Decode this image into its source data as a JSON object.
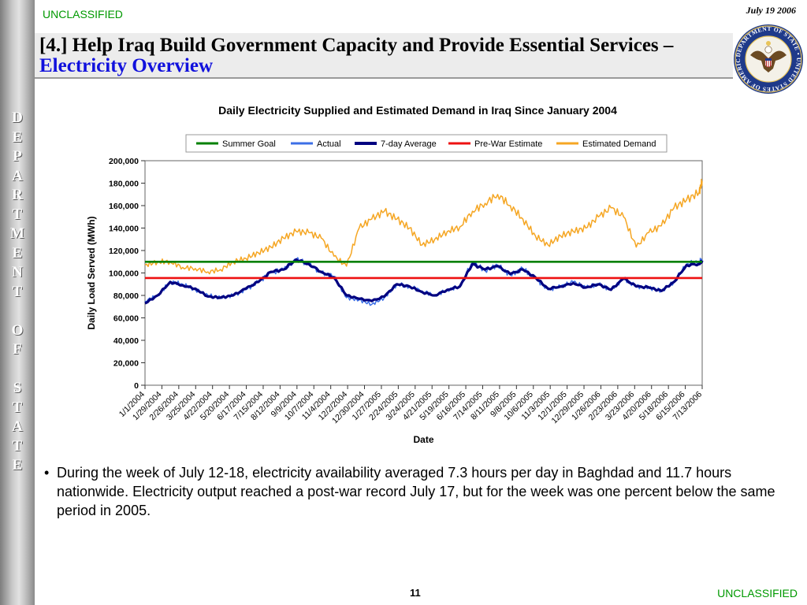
{
  "header": {
    "classification_top": "UNCLASSIFIED",
    "date": "July 19 2006",
    "title_main": "[4.] Help Iraq Build Government Capacity and Provide Essential Services – ",
    "title_accent": "Electricity Overview"
  },
  "sidebar": {
    "letters": [
      "D",
      "E",
      "P",
      "A",
      "R",
      "T",
      "M",
      "E",
      "N",
      "T",
      " ",
      "O",
      "F",
      " ",
      "S",
      "T",
      "A",
      "T",
      "E"
    ]
  },
  "seal": {
    "text": "DEPARTMENT OF STATE • UNITED STATES OF AMERICA"
  },
  "chart_data": {
    "type": "line",
    "title": "Daily Electricity Supplied and Estimated Demand in Iraq Since January 2004",
    "xlabel": "Date",
    "ylabel": "Daily Load Served (MWh)",
    "ylim": [
      0,
      200000
    ],
    "y_ticks": [
      "0",
      "20,000",
      "40,000",
      "60,000",
      "80,000",
      "100,000",
      "120,000",
      "140,000",
      "160,000",
      "180,000",
      "200,000"
    ],
    "x_tick_labels": [
      "1/1/2004",
      "1/29/2004",
      "2/26/2004",
      "3/25/2004",
      "4/22/2004",
      "5/20/2004",
      "6/17/2004",
      "7/15/2004",
      "8/12/2004",
      "9/9/2004",
      "10/7/2004",
      "11/4/2004",
      "12/2/2004",
      "12/30/2004",
      "1/27/2005",
      "2/24/2005",
      "3/24/2005",
      "4/21/2005",
      "5/19/2005",
      "6/16/2005",
      "7/14/2005",
      "8/11/2005",
      "9/8/2005",
      "10/6/2005",
      "11/3/2005",
      "12/1/2005",
      "12/29/2005",
      "1/26/2006",
      "2/23/2006",
      "3/23/2006",
      "4/20/2006",
      "5/18/2006",
      "6/15/2006",
      "7/13/2006"
    ],
    "x_range": [
      "2004-01-01",
      "2006-07-18"
    ],
    "grid": false,
    "legend_position": "top",
    "series": [
      {
        "name": "Summer Goal",
        "color": "#008000",
        "style": "flat",
        "x": [
          "2004-01-01",
          "2006-07-18"
        ],
        "y": [
          110000,
          110000
        ]
      },
      {
        "name": "Actual",
        "color": "#3c6fe6",
        "style": "jagged",
        "x": [
          "2004-01-01",
          "2004-01-22",
          "2004-02-12",
          "2004-03-04",
          "2004-03-25",
          "2004-04-15",
          "2004-05-06",
          "2004-05-27",
          "2004-06-17",
          "2004-07-08",
          "2004-07-29",
          "2004-08-19",
          "2004-09-09",
          "2004-09-30",
          "2004-10-21",
          "2004-11-11",
          "2004-12-02",
          "2004-12-23",
          "2005-01-13",
          "2005-02-03",
          "2005-02-24",
          "2005-03-17",
          "2005-04-07",
          "2005-04-28",
          "2005-05-19",
          "2005-06-09",
          "2005-06-30",
          "2005-07-21",
          "2005-08-11",
          "2005-09-01",
          "2005-09-22",
          "2005-10-13",
          "2005-11-03",
          "2005-11-24",
          "2005-12-15",
          "2006-01-05",
          "2006-01-26",
          "2006-02-16",
          "2006-03-09",
          "2006-03-30",
          "2006-04-20",
          "2006-05-11",
          "2006-06-01",
          "2006-06-22",
          "2006-07-13",
          "2006-07-18"
        ],
        "y": [
          75000,
          80000,
          92000,
          90000,
          85000,
          80000,
          78000,
          80000,
          85000,
          92000,
          100000,
          103000,
          112000,
          108000,
          100000,
          97000,
          78000,
          76000,
          72000,
          78000,
          90000,
          88000,
          84000,
          80000,
          85000,
          88000,
          110000,
          102000,
          107000,
          98000,
          104000,
          95000,
          85000,
          88000,
          92000,
          87000,
          90000,
          85000,
          95000,
          88000,
          87000,
          84000,
          92000,
          108000,
          110000,
          112000
        ]
      },
      {
        "name": "7-day Average",
        "color": "#000080",
        "style": "smooth",
        "x": [
          "2004-01-01",
          "2004-01-22",
          "2004-02-12",
          "2004-03-04",
          "2004-03-25",
          "2004-04-15",
          "2004-05-06",
          "2004-05-27",
          "2004-06-17",
          "2004-07-08",
          "2004-07-29",
          "2004-08-19",
          "2004-09-09",
          "2004-09-30",
          "2004-10-21",
          "2004-11-11",
          "2004-12-02",
          "2004-12-23",
          "2005-01-13",
          "2005-02-03",
          "2005-02-24",
          "2005-03-17",
          "2005-04-07",
          "2005-04-28",
          "2005-05-19",
          "2005-06-09",
          "2005-06-30",
          "2005-07-21",
          "2005-08-11",
          "2005-09-01",
          "2005-09-22",
          "2005-10-13",
          "2005-11-03",
          "2005-11-24",
          "2005-12-15",
          "2006-01-05",
          "2006-01-26",
          "2006-02-16",
          "2006-03-09",
          "2006-03-30",
          "2006-04-20",
          "2006-05-11",
          "2006-06-01",
          "2006-06-22",
          "2006-07-13",
          "2006-07-18"
        ],
        "y": [
          73000,
          80000,
          92000,
          89000,
          86000,
          79000,
          78000,
          80000,
          86000,
          92000,
          101000,
          103000,
          112000,
          108000,
          101000,
          96000,
          80000,
          77000,
          75000,
          79000,
          90000,
          88000,
          83000,
          80000,
          85000,
          88000,
          108000,
          103000,
          106000,
          99000,
          103000,
          96000,
          86000,
          88000,
          91000,
          87000,
          90000,
          85000,
          95000,
          88000,
          87000,
          84000,
          92000,
          107000,
          108000,
          111000
        ]
      },
      {
        "name": "Pre-War Estimate",
        "color": "#ee1111",
        "style": "flat",
        "x": [
          "2004-01-01",
          "2006-07-18"
        ],
        "y": [
          95500,
          95500
        ]
      },
      {
        "name": "Estimated Demand",
        "color": "#f5a623",
        "style": "jagged",
        "x": [
          "2004-01-01",
          "2004-01-22",
          "2004-02-12",
          "2004-03-04",
          "2004-03-25",
          "2004-04-15",
          "2004-05-06",
          "2004-05-27",
          "2004-06-17",
          "2004-07-08",
          "2004-07-29",
          "2004-08-19",
          "2004-09-09",
          "2004-09-30",
          "2004-10-21",
          "2004-11-11",
          "2004-12-02",
          "2004-12-23",
          "2005-01-13",
          "2005-02-03",
          "2005-02-24",
          "2005-03-17",
          "2005-04-07",
          "2005-04-28",
          "2005-05-19",
          "2005-06-09",
          "2005-06-30",
          "2005-07-21",
          "2005-08-11",
          "2005-09-01",
          "2005-09-22",
          "2005-10-13",
          "2005-11-03",
          "2005-11-24",
          "2005-12-15",
          "2006-01-05",
          "2006-01-26",
          "2006-02-16",
          "2006-03-09",
          "2006-03-30",
          "2006-04-20",
          "2006-05-11",
          "2006-06-01",
          "2006-06-22",
          "2006-07-13",
          "2006-07-18"
        ],
        "y": [
          107000,
          110000,
          110000,
          105000,
          104000,
          101000,
          103000,
          110000,
          113000,
          118000,
          123000,
          131000,
          137000,
          136000,
          131000,
          115000,
          106000,
          140000,
          148000,
          155000,
          148000,
          140000,
          125000,
          130000,
          137000,
          141000,
          155000,
          162000,
          170000,
          160000,
          148000,
          133000,
          125000,
          133000,
          137000,
          140000,
          150000,
          158000,
          150000,
          123000,
          136000,
          142000,
          158000,
          165000,
          172000,
          182000
        ]
      }
    ]
  },
  "bullet": {
    "text": "During the week of July 12-18, electricity availability averaged 7.3 hours per day in Baghdad and 11.7 hours nationwide.  Electricity output reached a post-war record July 17, but for the week was one percent below the same period in 2005."
  },
  "footer": {
    "page_number": "11",
    "classification_bottom": "UNCLASSIFIED"
  }
}
